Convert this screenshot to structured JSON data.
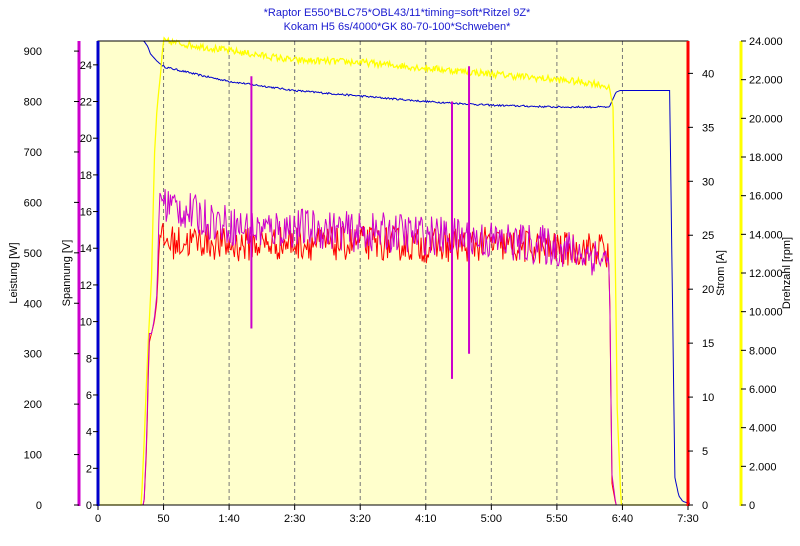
{
  "chart_data": {
    "type": "line",
    "title_lines": [
      "*Raptor E550*BLC75*OBL43/11*timing=soft*Ritzel 9Z*",
      "Kokam H5 6s/4000*GK 80-70-100*Schweben*"
    ],
    "xlabel": "",
    "xlim": [
      0,
      450
    ],
    "x_ticks": [
      0,
      50,
      100,
      150,
      200,
      250,
      300,
      350,
      400,
      450
    ],
    "x_tick_labels": [
      "0",
      "50",
      "1:40",
      "2:30",
      "3:20",
      "4:10",
      "5:00",
      "5:50",
      "6:40",
      "7:30"
    ],
    "grid": {
      "vertical_dashed": true,
      "horizontal": false
    },
    "axes": {
      "leistung": {
        "label": "Leistung [W]",
        "side": "left-outer",
        "range": [
          0,
          920
        ],
        "ticks": [
          0,
          100,
          200,
          300,
          400,
          500,
          600,
          700,
          800,
          900
        ],
        "color": "#cc00cc"
      },
      "spannung": {
        "label": "Spannung [V]",
        "side": "left-inner",
        "range": [
          0,
          25.3
        ],
        "ticks": [
          0,
          2,
          4,
          6,
          8,
          10,
          12,
          14,
          16,
          18,
          20,
          22,
          24
        ],
        "color": "#0000cc"
      },
      "strom": {
        "label": "Strom [A]",
        "side": "right-inner",
        "range": [
          0,
          43
        ],
        "ticks": [
          0,
          5,
          10,
          15,
          20,
          25,
          30,
          35,
          40
        ],
        "color": "#ff0000"
      },
      "drehzahl": {
        "label": "Drehzahl [rpm]",
        "side": "right-outer",
        "range": [
          0,
          24000
        ],
        "ticks": [
          0,
          2000,
          4000,
          6000,
          8000,
          10000,
          12000,
          14000,
          16000,
          18000,
          20000,
          22000,
          24000
        ],
        "tick_labels": [
          "0",
          "2.000",
          "4.000",
          "6.000",
          "8.000",
          "10.000",
          "12.000",
          "14.000",
          "16.000",
          "18.000",
          "20.000",
          "22.000",
          "24.000"
        ],
        "color": "#ffff00"
      }
    },
    "series": [
      {
        "axis": "spannung",
        "color": "#0000cc",
        "x": [
          0,
          30,
          35,
          38,
          40,
          45,
          50,
          80,
          100,
          150,
          200,
          250,
          300,
          350,
          390,
          395,
          398,
          400,
          420,
          436,
          440,
          443,
          446,
          450,
          460
        ],
        "y": [
          25.3,
          25.3,
          25.3,
          25.0,
          24.6,
          24.2,
          23.9,
          23.4,
          23.1,
          22.6,
          22.3,
          22.0,
          21.8,
          21.7,
          21.7,
          22.5,
          22.6,
          22.6,
          22.6,
          22.6,
          1.5,
          0.5,
          0.2,
          0.1,
          0.1
        ]
      },
      {
        "axis": "drehzahl",
        "color": "#ffff00",
        "x": [
          0,
          33,
          35,
          38,
          41,
          43,
          45,
          48,
          50,
          100,
          150,
          200,
          250,
          300,
          350,
          380,
          390,
          393,
          396,
          399,
          460
        ],
        "y": [
          0,
          0,
          3000,
          8000,
          12000,
          18000,
          20500,
          22500,
          24000,
          23500,
          23000,
          22900,
          22600,
          22300,
          22000,
          21800,
          21600,
          20500,
          5000,
          0,
          0
        ]
      },
      {
        "axis": "strom",
        "color": "#ff0000",
        "x": [
          0,
          35,
          37,
          39,
          41,
          43,
          45,
          47,
          50,
          60,
          80,
          100,
          120,
          150,
          180,
          200,
          230,
          250,
          280,
          300,
          320,
          340,
          360,
          385,
          390,
          392,
          395,
          400,
          460
        ],
        "y": [
          0,
          0,
          5,
          15,
          16,
          17,
          19,
          25,
          24.5,
          24.3,
          24.5,
          24.0,
          24.2,
          24.3,
          24.2,
          24.3,
          24.2,
          24.0,
          24.1,
          24.2,
          24.0,
          23.8,
          23.7,
          23.8,
          22.5,
          2,
          0,
          0,
          0
        ]
      },
      {
        "axis": "leistung",
        "color": "#cc00cc",
        "x": [
          0,
          35,
          37,
          39,
          41,
          43,
          45,
          47,
          50,
          60,
          80,
          100,
          120,
          150,
          180,
          200,
          230,
          250,
          280,
          300,
          320,
          340,
          360,
          385,
          390,
          392,
          395,
          400,
          460
        ],
        "y": [
          0,
          0,
          120,
          340,
          340,
          370,
          420,
          620,
          600,
          590,
          570,
          555,
          545,
          550,
          545,
          540,
          540,
          535,
          530,
          525,
          520,
          515,
          505,
          490,
          470,
          60,
          0,
          0,
          0
        ]
      }
    ],
    "spikes": [
      {
        "x": 117,
        "leistung_low": 350,
        "leistung_high": 850
      },
      {
        "x": 270,
        "leistung_low": 250,
        "leistung_high": 800
      },
      {
        "x": 283,
        "leistung_low": 300,
        "leistung_high": 870
      }
    ]
  }
}
